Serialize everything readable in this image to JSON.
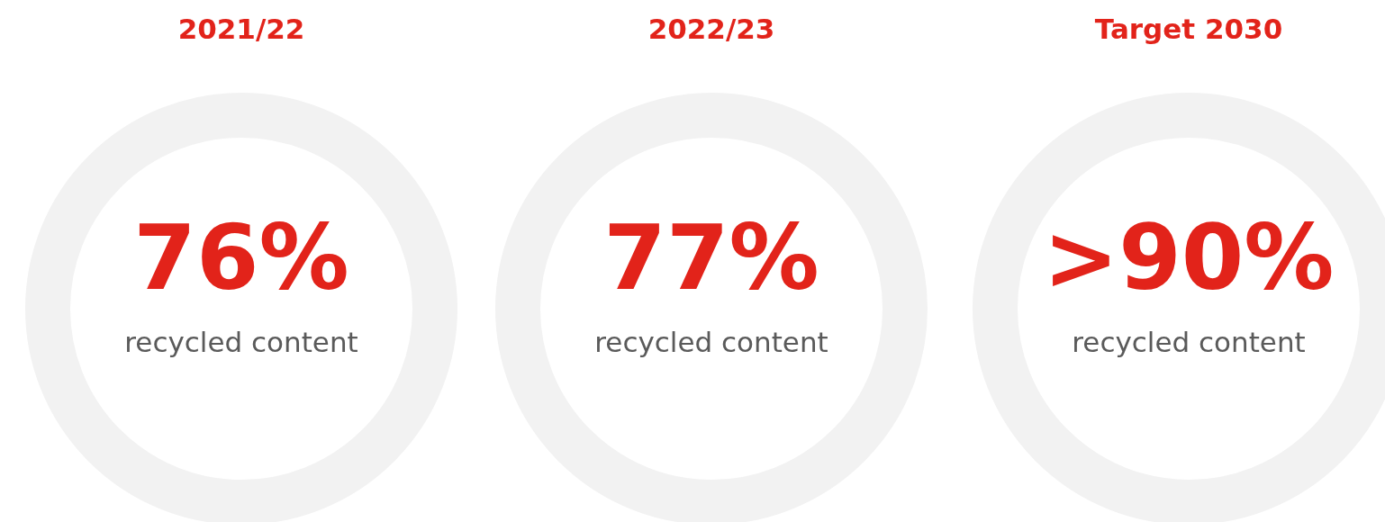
{
  "chart_data": {
    "type": "other",
    "categories": [
      "2021/22",
      "2022/23",
      "Target 2030"
    ],
    "values": [
      76,
      77,
      90
    ],
    "value_labels": [
      "76%",
      "77%",
      ">90%"
    ],
    "color": "#e2231a",
    "annotations": [
      "recycled content",
      "recycled content",
      "recycled content"
    ]
  }
}
